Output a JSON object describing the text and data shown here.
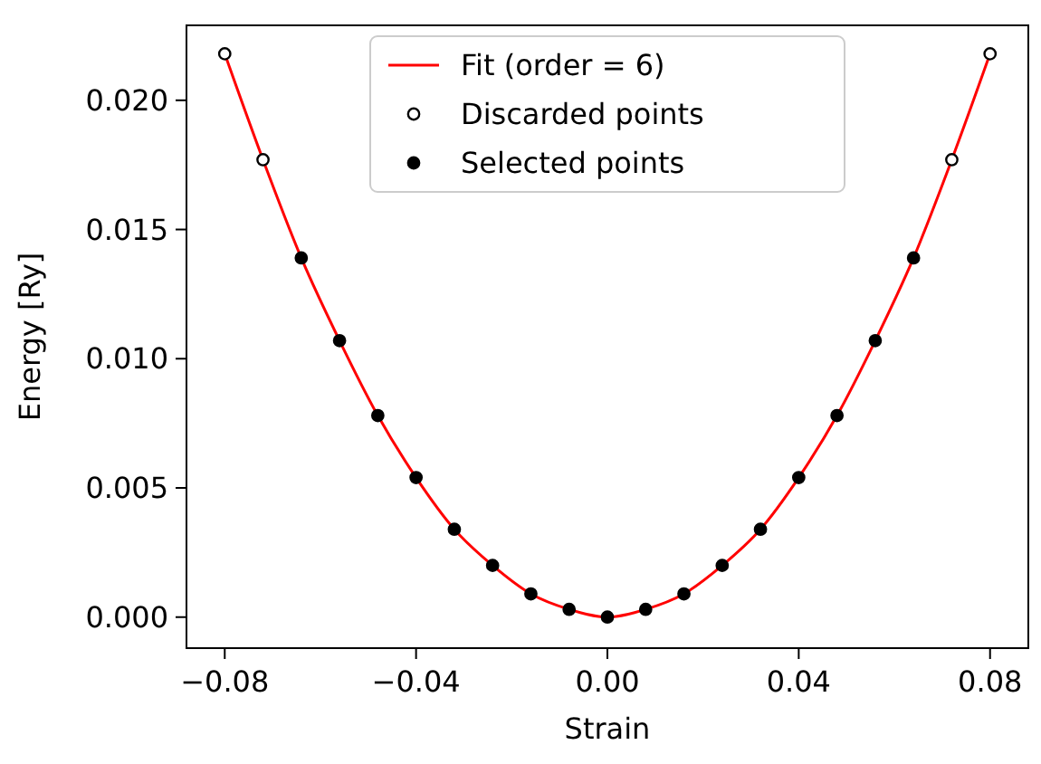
{
  "chart_data": {
    "type": "scatter",
    "xlabel": "Strain",
    "ylabel": "Energy [Ry]",
    "xlim": [
      -0.088,
      0.088
    ],
    "ylim": [
      -0.0012,
      0.0229
    ],
    "xticks": [
      {
        "value": -0.08,
        "label": "−0.08"
      },
      {
        "value": -0.04,
        "label": "−0.04"
      },
      {
        "value": 0,
        "label": "0.00"
      },
      {
        "value": 0.04,
        "label": "0.04"
      },
      {
        "value": 0.08,
        "label": "0.08"
      }
    ],
    "yticks": [
      {
        "value": 0,
        "label": "0.000"
      },
      {
        "value": 0.005,
        "label": "0.005"
      },
      {
        "value": 0.01,
        "label": "0.010"
      },
      {
        "value": 0.015,
        "label": "0.015"
      },
      {
        "value": 0.02,
        "label": "0.020"
      }
    ],
    "legend": "top",
    "grid": false,
    "series": [
      {
        "name": "Fit (order = 6)",
        "type": "line",
        "color": "#ff0000",
        "marker": "none",
        "line_style": "solid",
        "x": [
          -0.08,
          -0.072,
          -0.064,
          -0.056,
          -0.048,
          -0.04,
          -0.032,
          -0.024,
          -0.016,
          -0.008,
          0,
          0.008,
          0.016,
          0.024,
          0.032,
          0.04,
          0.048,
          0.056,
          0.064,
          0.072,
          0.08
        ],
        "values": [
          0.0218,
          0.0177,
          0.0139,
          0.0107,
          0.0078,
          0.0054,
          0.0034,
          0.002,
          0.0009,
          0.0003,
          0,
          0.0003,
          0.0009,
          0.002,
          0.0034,
          0.0054,
          0.0078,
          0.0107,
          0.0139,
          0.0177,
          0.0218
        ]
      },
      {
        "name": "Discarded points",
        "type": "scatter",
        "color": "#ffffff",
        "marker": "circle",
        "x": [
          -0.08,
          -0.072,
          0.072,
          0.08
        ],
        "values": [
          0.0218,
          0.0177,
          0.0177,
          0.0218
        ]
      },
      {
        "name": "Selected points",
        "type": "scatter",
        "color": "#000000",
        "marker": "circle",
        "x": [
          -0.064,
          -0.056,
          -0.048,
          -0.04,
          -0.032,
          -0.024,
          -0.016,
          -0.008,
          0,
          0.008,
          0.016,
          0.024,
          0.032,
          0.04,
          0.048,
          0.056,
          0.064
        ],
        "values": [
          0.0139,
          0.0107,
          0.0078,
          0.0054,
          0.0034,
          0.002,
          0.0009,
          0.0003,
          0,
          0.0003,
          0.0009,
          0.002,
          0.0034,
          0.0054,
          0.0078,
          0.0107,
          0.0139
        ]
      }
    ]
  }
}
